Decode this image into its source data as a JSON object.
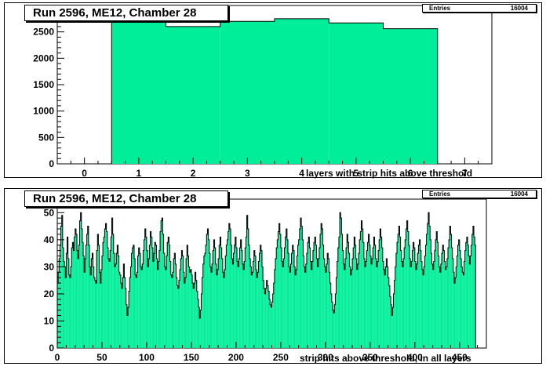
{
  "chart_data": [
    {
      "type": "bar",
      "title": "Run 2596, ME12, Chamber 28",
      "xlabel": "layers with strip hits above threshold",
      "ylabel": "",
      "stats": {
        "label": "Entries",
        "value": "16004"
      },
      "xlim": [
        -0.5,
        7.5
      ],
      "ylim": [
        0,
        3000
      ],
      "xticks": [
        0,
        1,
        2,
        3,
        4,
        5,
        6,
        7
      ],
      "yticks": [
        0,
        500,
        1000,
        1500,
        2000,
        2500
      ],
      "x": [
        1,
        2,
        3,
        4,
        5,
        6
      ],
      "values": [
        2720,
        2600,
        2700,
        2750,
        2670,
        2560
      ],
      "fill": "#00ee99",
      "grid": false
    },
    {
      "type": "bar",
      "title": "Run 2596, ME12, Chamber 28",
      "xlabel": "strip hits above threshold, in all layers",
      "ylabel": "",
      "stats": {
        "label": "Entries",
        "value": "16004"
      },
      "xlim": [
        0,
        480
      ],
      "ylim": [
        0,
        55
      ],
      "xticks": [
        0,
        50,
        100,
        150,
        200,
        250,
        300,
        350,
        400,
        450
      ],
      "yticks": [
        0,
        10,
        20,
        30,
        40,
        50
      ],
      "bin_width": 1,
      "values": [
        24,
        28,
        33,
        38,
        45,
        49,
        37,
        32,
        30,
        26,
        35,
        41,
        33,
        27,
        26,
        30,
        37,
        39,
        36,
        41,
        44,
        42,
        36,
        33,
        38,
        47,
        50,
        44,
        39,
        34,
        28,
        33,
        38,
        42,
        45,
        38,
        30,
        27,
        33,
        35,
        30,
        26,
        25,
        24,
        36,
        42,
        38,
        28,
        24,
        29,
        34,
        39,
        41,
        44,
        46,
        43,
        37,
        33,
        32,
        36,
        41,
        48,
        42,
        35,
        30,
        31,
        35,
        38,
        34,
        28,
        27,
        24,
        22,
        26,
        31,
        26,
        22,
        16,
        12,
        15,
        21,
        26,
        30,
        35,
        37,
        38,
        33,
        27,
        26,
        28,
        34,
        37,
        35,
        30,
        29,
        31,
        36,
        40,
        44,
        41,
        36,
        30,
        33,
        38,
        43,
        41,
        37,
        32,
        35,
        39,
        38,
        33,
        29,
        32,
        36,
        43,
        47,
        48,
        42,
        35,
        30,
        29,
        34,
        39,
        41,
        38,
        32,
        27,
        26,
        28,
        33,
        35,
        31,
        26,
        23,
        22,
        25,
        29,
        33,
        36,
        34,
        28,
        24,
        26,
        33,
        38,
        34,
        30,
        28,
        29,
        27,
        24,
        22,
        24,
        28,
        25,
        21,
        18,
        15,
        11,
        14,
        20,
        26,
        31,
        34,
        35,
        38,
        42,
        44,
        40,
        35,
        30,
        28,
        31,
        36,
        40,
        37,
        31,
        27,
        29,
        33,
        38,
        41,
        37,
        33,
        28,
        26,
        29,
        34,
        38,
        40,
        43,
        46,
        44,
        38,
        33,
        31,
        35,
        38,
        41,
        37,
        32,
        30,
        33,
        37,
        40,
        36,
        31,
        29,
        32,
        37,
        41,
        49,
        44,
        38,
        33,
        30,
        27,
        28,
        32,
        36,
        34,
        29,
        26,
        28,
        32,
        35,
        38,
        36,
        30,
        25,
        22,
        20,
        22,
        25,
        23,
        21,
        18,
        16,
        15,
        17,
        20,
        24,
        29,
        33,
        37,
        40,
        43,
        46,
        42,
        37,
        32,
        30,
        33,
        37,
        41,
        44,
        40,
        35,
        30,
        28,
        31,
        35,
        38,
        36,
        30,
        27,
        29,
        34,
        38,
        40,
        44,
        48,
        45,
        40,
        34,
        30,
        28,
        31,
        35,
        39,
        41,
        37,
        32,
        29,
        32,
        36,
        39,
        41,
        38,
        33,
        30,
        33,
        37,
        42,
        46,
        44,
        38,
        33,
        30,
        28,
        31,
        35,
        33,
        28,
        24,
        20,
        17,
        14,
        13,
        16,
        20,
        26,
        32,
        37,
        41,
        50,
        48,
        42,
        36,
        31,
        29,
        33,
        37,
        42,
        39,
        35,
        30,
        27,
        29,
        33,
        37,
        41,
        38,
        33,
        29,
        31,
        35,
        40,
        43,
        47,
        44,
        39,
        33,
        30,
        32,
        36,
        39,
        42,
        38,
        34,
        31,
        33,
        37,
        41,
        38,
        33,
        30,
        32,
        36,
        40,
        44,
        41,
        37,
        32,
        29,
        27,
        30,
        33,
        30,
        26,
        23,
        19,
        16,
        12,
        15,
        20,
        25,
        30,
        35,
        39,
        42,
        45,
        41,
        36,
        32,
        30,
        33,
        37,
        40,
        44,
        47,
        43,
        38,
        33,
        30,
        32,
        36,
        39,
        37,
        32,
        29,
        31,
        35,
        38,
        40,
        36,
        32,
        29,
        27,
        30,
        34,
        38,
        42,
        46,
        50,
        45,
        40,
        35,
        31,
        29,
        32,
        36,
        40,
        43,
        39,
        34,
        30,
        28,
        31,
        35,
        38,
        36,
        32,
        29,
        30,
        33,
        37,
        40,
        45,
        42,
        37,
        33,
        28,
        24,
        26,
        30,
        34,
        38,
        40,
        36,
        33,
        30,
        28,
        27,
        32,
        36,
        39,
        41,
        38,
        34,
        31,
        34,
        38,
        42,
        45,
        41,
        38
      ],
      "fill": "#00ee99",
      "grid": false
    }
  ]
}
